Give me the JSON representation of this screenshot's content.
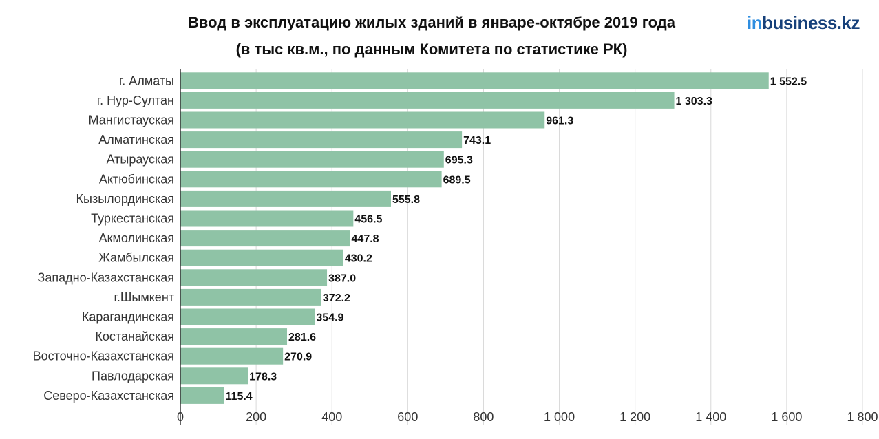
{
  "header": {
    "title_line1": "Ввод в эксплуатацию жилых зданий в январе-октябре 2019 года",
    "title_line2": "(в тыс кв.м., по данным Комитета по статистике РК)"
  },
  "logo": {
    "prefix": "in",
    "rest": "business.kz"
  },
  "chart_data": {
    "type": "bar",
    "orientation": "horizontal",
    "title": "Ввод в эксплуатацию жилых зданий в январе-октябре 2019 года",
    "subtitle": "(в тыс кв.м., по данным Комитета по статистике РК)",
    "categories": [
      "г. Алматы",
      "г. Нур-Султан",
      "Мангистауская",
      "Алматинская",
      "Атырауская",
      "Актюбинская",
      "Кызылординская",
      "Туркестанская",
      "Акмолинская",
      "Жамбылская",
      "Западно-Казахстанская",
      "г.Шымкент",
      "Карагандинская",
      "Костанайская",
      "Восточно-Казахстанская",
      "Павлодарская",
      "Северо-Казахстанская"
    ],
    "values": [
      1552.5,
      1303.3,
      961.3,
      743.1,
      695.3,
      689.5,
      555.8,
      456.5,
      447.8,
      430.2,
      387.0,
      372.2,
      354.9,
      281.6,
      270.9,
      178.3,
      115.4
    ],
    "value_labels": [
      "1 552.5",
      "1 303.3",
      "961.3",
      "743.1",
      "695.3",
      "689.5",
      "555.8",
      "456.5",
      "447.8",
      "430.2",
      "387.0",
      "372.2",
      "354.9",
      "281.6",
      "270.9",
      "178.3",
      "115.4"
    ],
    "xlim": [
      0,
      1800
    ],
    "xticks": [
      0,
      200,
      400,
      600,
      800,
      1000,
      1200,
      1400,
      1600,
      1800
    ],
    "xtick_labels": [
      "0",
      "200",
      "400",
      "600",
      "800",
      "1 000",
      "1 200",
      "1 400",
      "1 600",
      "1 800"
    ],
    "grid": true,
    "bar_color": "#8fc3a6",
    "grid_color": "#d8d8d8",
    "axis_color": "#333333"
  }
}
